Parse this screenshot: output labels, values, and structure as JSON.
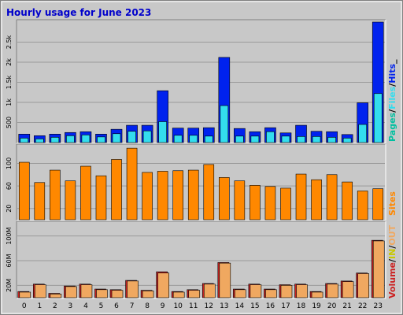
{
  "chart_data": {
    "type": "bar",
    "title": "Hourly usage for June 2023",
    "categories": [
      "0",
      "1",
      "2",
      "3",
      "4",
      "5",
      "6",
      "7",
      "8",
      "9",
      "10",
      "11",
      "12",
      "13",
      "14",
      "15",
      "16",
      "17",
      "18",
      "19",
      "20",
      "21",
      "22",
      "23"
    ],
    "panels": [
      {
        "name": "traffic",
        "ylim": [
          0,
          3000
        ],
        "ticks": [
          {
            "value": 500,
            "label": "500"
          },
          {
            "value": 1000,
            "label": "1k"
          },
          {
            "value": 1500,
            "label": "1.5k"
          },
          {
            "value": 2000,
            "label": "2k"
          },
          {
            "value": 2500,
            "label": "2.5k"
          }
        ],
        "series": [
          {
            "name": "Hits",
            "color": "#0022ee",
            "values": [
              210,
              170,
              210,
              250,
              270,
              210,
              330,
              430,
              430,
              1290,
              360,
              360,
              370,
              2120,
              350,
              270,
              370,
              240,
              430,
              280,
              270,
              200,
              990,
              3000
            ]
          },
          {
            "name": "Files",
            "color": "#33ddee",
            "values": [
              110,
              90,
              130,
              170,
              190,
              140,
              220,
              280,
              290,
              520,
              180,
              180,
              160,
              920,
              160,
              160,
              270,
              160,
              150,
              150,
              130,
              110,
              450,
              1220
            ]
          },
          {
            "name": "Pages",
            "color": "#00c0a0",
            "values": [
              0,
              0,
              0,
              0,
              0,
              0,
              0,
              0,
              0,
              0,
              0,
              0,
              0,
              0,
              0,
              0,
              0,
              0,
              0,
              0,
              0,
              0,
              0,
              0
            ]
          }
        ],
        "legend": [
          {
            "text": "Pages",
            "color": "#00c0a0"
          },
          {
            "text": "/",
            "color": "#000000"
          },
          {
            "text": "Files",
            "color": "#33ddee"
          },
          {
            "text": "/",
            "color": "#000000"
          },
          {
            "text": "Hits",
            "color": "#0022ee"
          },
          {
            "text": "_",
            "color": "#000000"
          }
        ]
      },
      {
        "name": "sites",
        "ylim": [
          0,
          130
        ],
        "ticks": [
          {
            "value": 20,
            "label": "20"
          },
          {
            "value": 60,
            "label": "60"
          },
          {
            "value": 100,
            "label": "100"
          }
        ],
        "series": [
          {
            "name": "Sites",
            "color": "#ff8800",
            "values": [
              102,
              66,
              88,
              69,
              95,
              78,
              107,
              127,
              84,
              86,
              87,
              88,
              98,
              75,
              69,
              61,
              59,
              56,
              81,
              71,
              80,
              67,
              51,
              55
            ]
          }
        ],
        "legend": [
          {
            "text": "Sites",
            "color": "#ff8800"
          }
        ]
      },
      {
        "name": "volume",
        "ylim": [
          0,
          120
        ],
        "ticks": [
          {
            "value": 20,
            "label": "20M"
          },
          {
            "value": 60,
            "label": "60M"
          },
          {
            "value": 100,
            "label": "100M"
          }
        ],
        "series": [
          {
            "name": "Volume",
            "color": "#cc2222",
            "values": [
              10,
              22,
              7,
              19,
              22,
              14,
              13,
              28,
              12,
              42,
              10,
              13,
              23,
              57,
              14,
              22,
              14,
              21,
              22,
              10,
              23,
              27,
              40,
              93
            ]
          },
          {
            "name": "OUT",
            "color": "#f0a860",
            "values": [
              9,
              21,
              6,
              18,
              21,
              13,
              12,
              27,
              11,
              40,
              9,
              12,
              22,
              56,
              13,
              21,
              13,
              20,
              21,
              9,
              22,
              26,
              39,
              92
            ]
          }
        ],
        "legend": [
          {
            "text": "Volume",
            "color": "#cc2222"
          },
          {
            "text": "/",
            "color": "#000000"
          },
          {
            "text": "IN",
            "color": "#c8c800"
          },
          {
            "text": "/",
            "color": "#000000"
          },
          {
            "text": "OUT",
            "color": "#f0a860"
          }
        ]
      }
    ]
  }
}
